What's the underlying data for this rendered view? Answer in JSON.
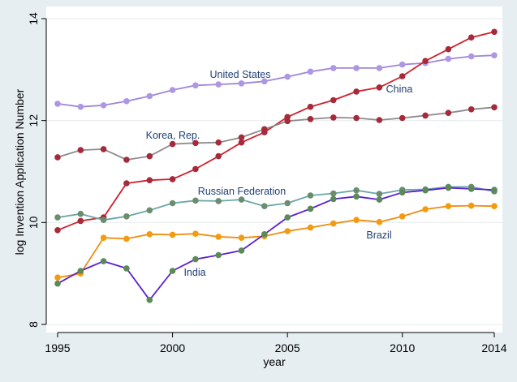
{
  "chart_data": {
    "type": "line",
    "xlabel": "year",
    "ylabel": "log Invention Application Number",
    "xlim": [
      1995,
      2014
    ],
    "ylim": [
      8,
      14
    ],
    "xticks": [
      1995,
      2000,
      2005,
      2010,
      2014
    ],
    "yticks": [
      8,
      10,
      12,
      14
    ],
    "grid": true,
    "series": [
      {
        "name": "United States",
        "line_color": "#9f86d9",
        "marker_color": "#ad97e4",
        "x": [
          1995,
          1996,
          1997,
          1998,
          1999,
          2000,
          2001,
          2002,
          2003,
          2004,
          2005,
          2006,
          2007,
          2008,
          2009,
          2010,
          2011,
          2012,
          2013,
          2014
        ],
        "y": [
          12.33,
          12.27,
          12.3,
          12.38,
          12.48,
          12.6,
          12.69,
          12.71,
          12.73,
          12.77,
          12.86,
          12.96,
          13.03,
          13.03,
          13.03,
          13.1,
          13.13,
          13.21,
          13.26,
          13.28
        ]
      },
      {
        "name": "China",
        "line_color": "#d21f2b",
        "marker_color": "#a52a3a",
        "x": [
          1995,
          1996,
          1997,
          1998,
          1999,
          2000,
          2001,
          2002,
          2003,
          2004,
          2005,
          2006,
          2007,
          2008,
          2009,
          2010,
          2011,
          2012,
          2013,
          2014
        ],
        "y": [
          9.85,
          10.03,
          10.1,
          10.77,
          10.83,
          10.85,
          11.05,
          11.3,
          11.57,
          11.77,
          12.07,
          12.27,
          12.4,
          12.57,
          12.65,
          12.87,
          13.17,
          13.4,
          13.63,
          13.74
        ]
      },
      {
        "name": "Korea, Rep.",
        "line_color": "#8c8c8c",
        "marker_color": "#a52a3a",
        "x": [
          1995,
          1996,
          1997,
          1998,
          1999,
          2000,
          2001,
          2002,
          2003,
          2004,
          2005,
          2006,
          2007,
          2008,
          2009,
          2010,
          2011,
          2012,
          2013,
          2014
        ],
        "y": [
          11.28,
          11.42,
          11.44,
          11.23,
          11.3,
          11.54,
          11.56,
          11.57,
          11.67,
          11.83,
          11.99,
          12.03,
          12.06,
          12.05,
          12.01,
          12.05,
          12.1,
          12.15,
          12.22,
          12.26
        ]
      },
      {
        "name": "Russian Federation",
        "line_color": "#6aa6a8",
        "marker_color": "#6a8d6e",
        "x": [
          1995,
          1996,
          1997,
          1998,
          1999,
          2000,
          2001,
          2002,
          2003,
          2004,
          2005,
          2006,
          2007,
          2008,
          2009,
          2010,
          2011,
          2012,
          2013,
          2014
        ],
        "y": [
          10.1,
          10.17,
          10.05,
          10.12,
          10.24,
          10.38,
          10.43,
          10.42,
          10.45,
          10.32,
          10.38,
          10.53,
          10.57,
          10.63,
          10.56,
          10.64,
          10.65,
          10.7,
          10.7,
          10.61
        ]
      },
      {
        "name": "Brazil",
        "line_color": "#f08c10",
        "marker_color": "#f49a0e",
        "x": [
          1995,
          1996,
          1997,
          1998,
          1999,
          2000,
          2001,
          2002,
          2003,
          2004,
          2005,
          2006,
          2007,
          2008,
          2009,
          2010,
          2011,
          2012,
          2013,
          2014
        ],
        "y": [
          8.92,
          9.0,
          9.7,
          9.68,
          9.77,
          9.76,
          9.78,
          9.72,
          9.7,
          9.73,
          9.83,
          9.9,
          9.98,
          10.05,
          10.01,
          10.12,
          10.26,
          10.32,
          10.33,
          10.32
        ]
      },
      {
        "name": "India",
        "line_color": "#5a1ed4",
        "marker_color": "#5a8a55",
        "x": [
          1995,
          1996,
          1997,
          1998,
          1999,
          2000,
          2001,
          2002,
          2003,
          2004,
          2005,
          2006,
          2007,
          2008,
          2009,
          2010,
          2011,
          2012,
          2013,
          2014
        ],
        "y": [
          8.8,
          9.05,
          9.24,
          9.1,
          8.48,
          9.05,
          9.28,
          9.36,
          9.45,
          9.77,
          10.1,
          10.27,
          10.46,
          10.51,
          10.45,
          10.59,
          10.63,
          10.68,
          10.66,
          10.64
        ]
      }
    ]
  }
}
